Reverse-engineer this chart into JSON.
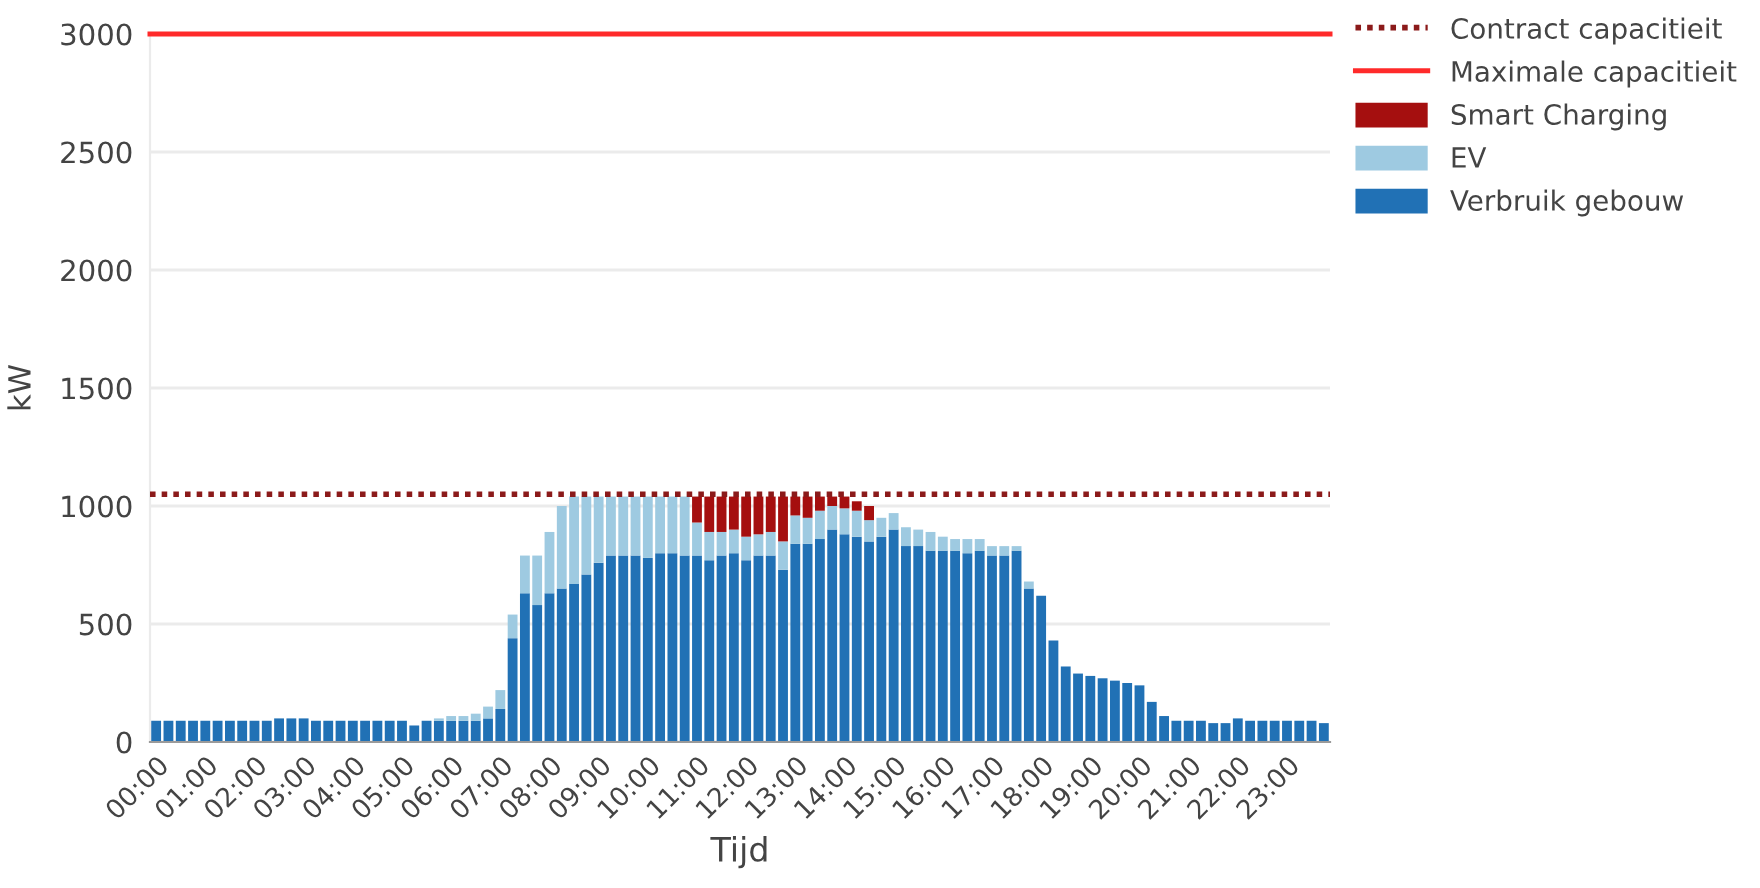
{
  "chart_data": {
    "type": "bar",
    "stacked": true,
    "categories": [
      "00:00",
      null,
      null,
      null,
      "01:00",
      null,
      null,
      null,
      "02:00",
      null,
      null,
      null,
      "03:00",
      null,
      null,
      null,
      "04:00",
      null,
      null,
      null,
      "05:00",
      null,
      null,
      null,
      "06:00",
      null,
      null,
      null,
      "07:00",
      null,
      null,
      null,
      "08:00",
      null,
      null,
      null,
      "09:00",
      null,
      null,
      null,
      "10:00",
      null,
      null,
      null,
      "11:00",
      null,
      null,
      null,
      "12:00",
      null,
      null,
      null,
      "13:00",
      null,
      null,
      null,
      "14:00",
      null,
      null,
      null,
      "15:00",
      null,
      null,
      null,
      "16:00",
      null,
      null,
      null,
      "17:00",
      null,
      null,
      null,
      "18:00",
      null,
      null,
      null,
      "19:00",
      null,
      null,
      null,
      "20:00",
      null,
      null,
      null,
      "21:00",
      null,
      null,
      null,
      "22:00",
      null,
      null,
      null,
      "23:00",
      null,
      null,
      null
    ],
    "series": [
      {
        "name": "Verbruik gebouw",
        "color": "#2171b5",
        "values": [
          90,
          90,
          90,
          90,
          90,
          90,
          90,
          90,
          90,
          90,
          100,
          100,
          100,
          90,
          90,
          90,
          90,
          90,
          90,
          90,
          90,
          70,
          90,
          90,
          90,
          90,
          90,
          100,
          140,
          440,
          630,
          580,
          630,
          650,
          670,
          710,
          760,
          790,
          790,
          790,
          780,
          800,
          800,
          790,
          790,
          770,
          790,
          800,
          770,
          790,
          790,
          730,
          840,
          840,
          860,
          900,
          880,
          870,
          850,
          870,
          900,
          830,
          830,
          810,
          810,
          810,
          800,
          810,
          790,
          790,
          810,
          650,
          620,
          430,
          320,
          290,
          280,
          270,
          260,
          250,
          240,
          170,
          110,
          90,
          90,
          90,
          80,
          80,
          100,
          90,
          90,
          90,
          90,
          90,
          90,
          80
        ]
      },
      {
        "name": "EV",
        "color": "#9ecae1",
        "values": [
          null,
          null,
          null,
          null,
          null,
          null,
          null,
          null,
          null,
          null,
          null,
          null,
          null,
          null,
          null,
          null,
          null,
          null,
          null,
          null,
          null,
          null,
          null,
          10,
          20,
          20,
          30,
          50,
          80,
          100,
          160,
          210,
          260,
          350,
          370,
          330,
          280,
          250,
          250,
          250,
          260,
          240,
          240,
          250,
          140,
          120,
          100,
          100,
          100,
          90,
          100,
          120,
          120,
          110,
          120,
          100,
          110,
          110,
          90,
          80,
          70,
          80,
          70,
          80,
          60,
          50,
          60,
          50,
          40,
          40,
          20,
          30,
          null,
          null,
          null,
          null,
          null,
          null,
          null,
          null,
          null,
          null,
          null,
          null,
          null,
          null,
          null,
          null,
          null,
          null,
          null,
          null,
          null,
          null,
          null,
          null
        ]
      },
      {
        "name": "Smart Charging",
        "color": "#a50f0f",
        "values": [
          null,
          null,
          null,
          null,
          null,
          null,
          null,
          null,
          null,
          null,
          null,
          null,
          null,
          null,
          null,
          null,
          null,
          null,
          null,
          null,
          null,
          null,
          null,
          null,
          null,
          null,
          null,
          null,
          null,
          null,
          null,
          null,
          null,
          null,
          null,
          null,
          null,
          null,
          null,
          null,
          null,
          null,
          null,
          null,
          110,
          150,
          150,
          140,
          170,
          160,
          150,
          190,
          80,
          90,
          60,
          40,
          50,
          40,
          60,
          null,
          null,
          null,
          null,
          null,
          null,
          null,
          null,
          null,
          null,
          null,
          null,
          null,
          null,
          null,
          null,
          null,
          null,
          null,
          null,
          null,
          null,
          null,
          null,
          null,
          null,
          null,
          null,
          null,
          null,
          null,
          null,
          null,
          null,
          null,
          null,
          null
        ]
      }
    ],
    "ref_lines": [
      {
        "axis": "y",
        "value": 1050,
        "label": "Contract capacitieit",
        "color": "#8b1a1a",
        "line_style": "dotted"
      },
      {
        "axis": "y",
        "value": 3000,
        "label": "Maximale capacitieit",
        "color": "#ff2a2a",
        "line_style": "solid"
      }
    ],
    "xlabel": "Tijd",
    "ylabel": "kW",
    "ylim": [
      0,
      3000
    ],
    "yticks": [
      0,
      500,
      1000,
      1500,
      2000,
      2500,
      3000
    ],
    "grid": "y",
    "legend": "top right"
  }
}
